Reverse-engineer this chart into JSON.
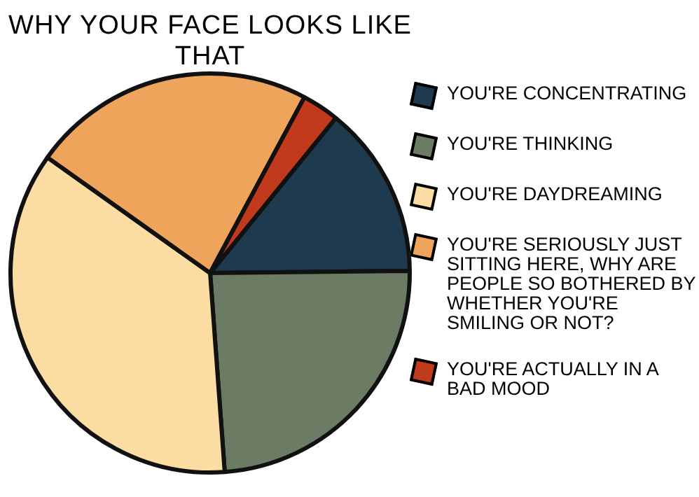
{
  "chart_data": {
    "type": "pie",
    "title": "WHY YOUR FACE LOOKS LIKE THAT",
    "categories": [
      "YOU'RE CONCENTRATING",
      "YOU'RE THINKING",
      "YOU'RE DAYDREAMING",
      "YOU'RE SERIOUSLY JUST SITTING HERE, WHY ARE PEOPLE SO BOTHERED BY WHETHER YOU'RE SMILING OR NOT?",
      "YOU'RE ACTUALLY IN A BAD MOOD"
    ],
    "values": [
      14,
      24,
      36,
      23,
      3
    ],
    "colors": [
      "#1e3a4e",
      "#6c7b64",
      "#fbdca2",
      "#efa45c",
      "#c13a1c"
    ],
    "legend": "right"
  }
}
